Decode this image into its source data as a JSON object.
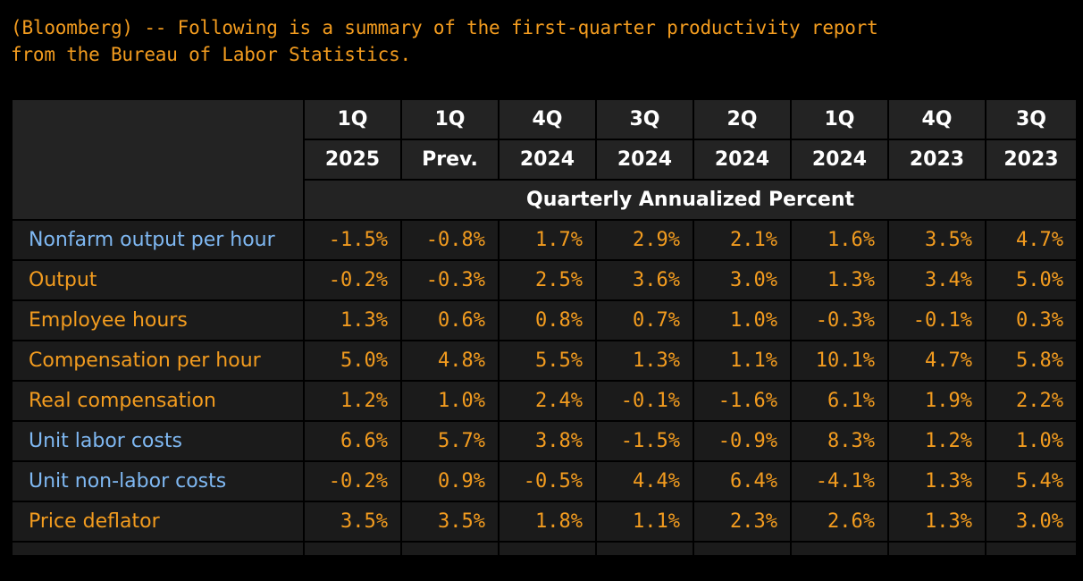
{
  "intro": {
    "line1": "(Bloomberg) -- Following is a summary of the first-quarter productivity report",
    "line2": "from the Bureau of Labor Statistics."
  },
  "table": {
    "header_top": [
      "1Q",
      "1Q",
      "4Q",
      "3Q",
      "2Q",
      "1Q",
      "4Q",
      "3Q"
    ],
    "header_bottom": [
      "2025",
      "Prev.",
      "2024",
      "2024",
      "2024",
      "2024",
      "2023",
      "2023"
    ],
    "unit_label": "Quarterly Annualized Percent",
    "rows": [
      {
        "label": "Nonfarm output per hour",
        "color": "blue",
        "values": [
          "-1.5%",
          "-0.8%",
          "1.7%",
          "2.9%",
          "2.1%",
          "1.6%",
          "3.5%",
          "4.7%"
        ]
      },
      {
        "label": "Output",
        "color": "orange",
        "values": [
          "-0.2%",
          "-0.3%",
          "2.5%",
          "3.6%",
          "3.0%",
          "1.3%",
          "3.4%",
          "5.0%"
        ]
      },
      {
        "label": "Employee hours",
        "color": "orange",
        "values": [
          "1.3%",
          "0.6%",
          "0.8%",
          "0.7%",
          "1.0%",
          "-0.3%",
          "-0.1%",
          "0.3%"
        ]
      },
      {
        "label": "Compensation per hour",
        "color": "orange",
        "values": [
          "5.0%",
          "4.8%",
          "5.5%",
          "1.3%",
          "1.1%",
          "10.1%",
          "4.7%",
          "5.8%"
        ]
      },
      {
        "label": "Real compensation",
        "color": "orange",
        "values": [
          "1.2%",
          "1.0%",
          "2.4%",
          "-0.1%",
          "-1.6%",
          "6.1%",
          "1.9%",
          "2.2%"
        ]
      },
      {
        "label": "Unit labor costs",
        "color": "blue",
        "values": [
          "6.6%",
          "5.7%",
          "3.8%",
          "-1.5%",
          "-0.9%",
          "8.3%",
          "1.2%",
          "1.0%"
        ]
      },
      {
        "label": "Unit non-labor costs",
        "color": "blue",
        "values": [
          "-0.2%",
          "0.9%",
          "-0.5%",
          "4.4%",
          "6.4%",
          "-4.1%",
          "1.3%",
          "5.4%"
        ]
      },
      {
        "label": "Price deflator",
        "color": "orange",
        "values": [
          "3.5%",
          "3.5%",
          "1.8%",
          "1.1%",
          "2.3%",
          "2.6%",
          "1.3%",
          "3.0%"
        ]
      }
    ]
  },
  "colors": {
    "background": "#000000",
    "cell": "#1b1b1b",
    "orange": "#f39c1f",
    "blue": "#7fb8f2",
    "header_text": "#ffffff"
  }
}
